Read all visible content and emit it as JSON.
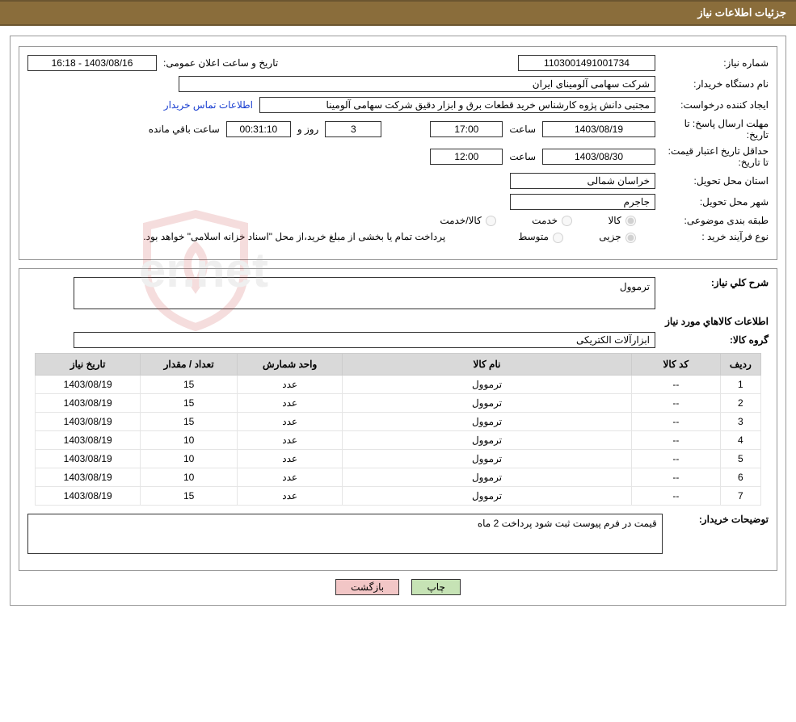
{
  "title": "جزئیات اطلاعات نیاز",
  "labels": {
    "need_no": "شماره نیاز:",
    "announce_dt": "تاریخ و ساعت اعلان عمومی:",
    "buyer_org": "نام دستگاه خریدار:",
    "requester": "ایجاد کننده درخواست:",
    "reply_deadline": "مهلت ارسال پاسخ: تا تاریخ:",
    "hour": "ساعت",
    "days_and": "روز و",
    "hours_remain": "ساعت باقي مانده",
    "price_validity": "حداقل تاریخ اعتبار قیمت: تا تاریخ:",
    "delivery_province": "استان محل تحویل:",
    "delivery_city": "شهر محل تحویل:",
    "subject_class": "طبقه بندی موضوعی:",
    "purchase_type": "نوع فرآیند خرید :",
    "need_desc": "شرح کلي نیاز:",
    "items_info": "اطلاعات کالاهاي مورد نیاز",
    "item_group": "گروه کالا:",
    "buyer_notes": "توضیحات خریدار:"
  },
  "values": {
    "need_no": "1103001491001734",
    "announce_dt": "1403/08/16 - 16:18",
    "buyer_org": "شرکت سهامی آلومینای ایران",
    "requester": "مجتبی دانش پژوه کارشناس خرید قطعات برق و ابزار دقیق شرکت سهامی آلومینا",
    "contact_link": "اطلاعات تماس خریدار",
    "reply_date": "1403/08/19",
    "reply_time": "17:00",
    "days_remain": "3",
    "time_remain": "00:31:10",
    "validity_date": "1403/08/30",
    "validity_time": "12:00",
    "province": "خراسان شمالی",
    "city": "جاجرم",
    "need_desc": "ترموول",
    "item_group": "ابزارآلات الکتریکی",
    "buyer_notes": "قیمت در فرم پیوست ثبت شود پرداخت 2 ماه"
  },
  "radios": {
    "goods": "کالا",
    "service": "خدمت",
    "goods_service": "کالا/خدمت",
    "partial": "جزيی",
    "medium": "متوسط"
  },
  "purchase_note": "پرداخت تمام یا بخشی از مبلغ خرید،از محل \"اسناد خزانه اسلامی\" خواهد بود.",
  "table": {
    "headers": {
      "row": "ردیف",
      "code": "کد کالا",
      "name": "نام کالا",
      "unit": "واحد شمارش",
      "qty": "تعداد / مقدار",
      "need_date": "تاریخ نیاز"
    },
    "rows": [
      {
        "row": "1",
        "code": "--",
        "name": "ترموول",
        "unit": "عدد",
        "qty": "15",
        "date": "1403/08/19"
      },
      {
        "row": "2",
        "code": "--",
        "name": "ترموول",
        "unit": "عدد",
        "qty": "15",
        "date": "1403/08/19"
      },
      {
        "row": "3",
        "code": "--",
        "name": "ترموول",
        "unit": "عدد",
        "qty": "15",
        "date": "1403/08/19"
      },
      {
        "row": "4",
        "code": "--",
        "name": "ترموول",
        "unit": "عدد",
        "qty": "10",
        "date": "1403/08/19"
      },
      {
        "row": "5",
        "code": "--",
        "name": "ترموول",
        "unit": "عدد",
        "qty": "10",
        "date": "1403/08/19"
      },
      {
        "row": "6",
        "code": "--",
        "name": "ترموول",
        "unit": "عدد",
        "qty": "10",
        "date": "1403/08/19"
      },
      {
        "row": "7",
        "code": "--",
        "name": "ترموول",
        "unit": "عدد",
        "qty": "15",
        "date": "1403/08/19"
      }
    ]
  },
  "buttons": {
    "print": "چاپ",
    "back": "بازگشت"
  },
  "watermark_text": "AriaTender.net",
  "colors": {
    "header_bg": "#8a6d3b",
    "header_border": "#6b5530",
    "frame_border": "#999999",
    "th_bg": "#d9d9d9",
    "link": "#1a3fd1",
    "btn_print": "#c6e3b5",
    "btn_back": "#f2c6c6",
    "shield": "#c94a4a"
  }
}
